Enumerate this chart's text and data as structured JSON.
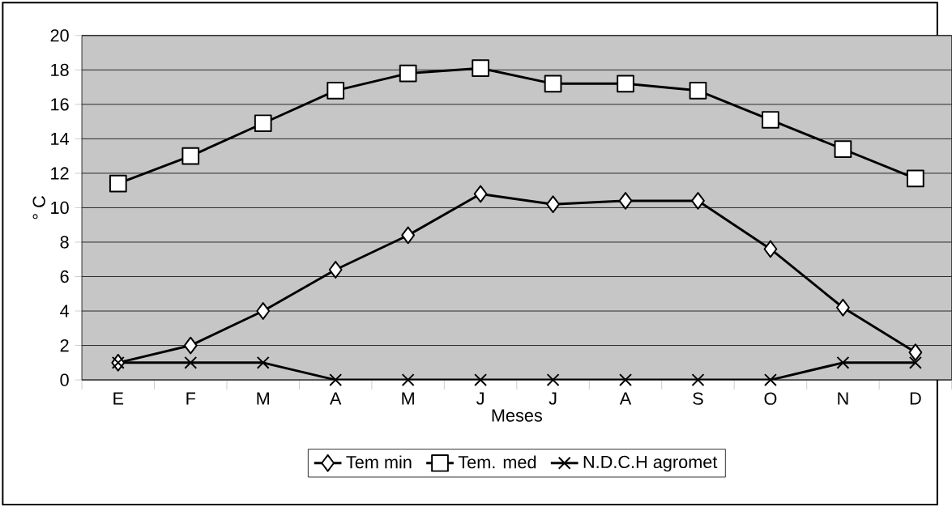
{
  "chart_data": {
    "type": "line",
    "xlabel": "Meses",
    "ylabel": "° C",
    "categories": [
      "E",
      "F",
      "M",
      "A",
      "M",
      "J",
      "J",
      "A",
      "S",
      "O",
      "N",
      "D"
    ],
    "series": [
      {
        "name": "Tem min",
        "color": "#000000",
        "marker": "diamond",
        "values": [
          1.0,
          2.0,
          4.0,
          6.4,
          8.4,
          10.8,
          10.2,
          10.4,
          10.4,
          7.6,
          4.2,
          1.6
        ]
      },
      {
        "name": "Tem. med",
        "color": "#000000",
        "marker": "square",
        "values": [
          11.4,
          13.0,
          14.9,
          16.8,
          17.8,
          18.1,
          17.2,
          17.2,
          16.8,
          15.1,
          13.4,
          11.7
        ]
      },
      {
        "name": "N.D.C.H agromet",
        "color": "#000000",
        "marker": "cross",
        "values": [
          1,
          1,
          1,
          0,
          0,
          0,
          0,
          0,
          0,
          0,
          1,
          1
        ]
      }
    ],
    "ylim": [
      0,
      20
    ],
    "yticks": [
      0,
      2,
      4,
      6,
      8,
      10,
      12,
      14,
      16,
      18,
      20
    ],
    "grid": "y",
    "legend": "bottom",
    "line_style": "solid"
  }
}
